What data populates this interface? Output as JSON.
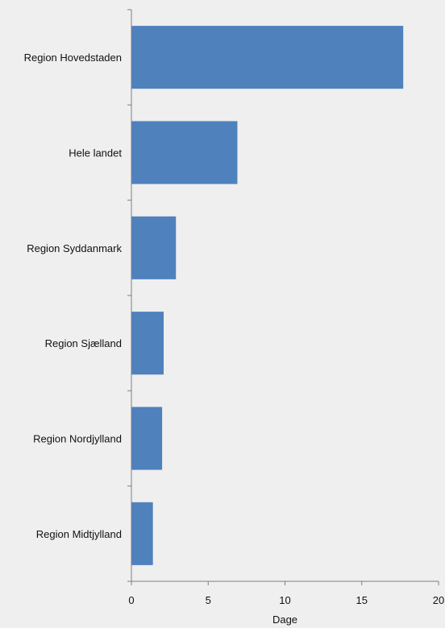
{
  "chart_data": {
    "type": "bar",
    "orientation": "horizontal",
    "categories": [
      "Region Hovedstaden",
      "Hele landet",
      "Region Syddanmark",
      "Region Sjælland",
      "Region Nordjylland",
      "Region Midtjylland"
    ],
    "values": [
      17.7,
      6.9,
      2.9,
      2.1,
      2.0,
      1.4
    ],
    "title": "",
    "xlabel": "Dage",
    "ylabel": "",
    "xlim": [
      0,
      20
    ],
    "xticks": [
      "0",
      "5",
      "10",
      "15",
      "20"
    ],
    "grid": false,
    "legend": "none",
    "bar_color": "#4f81bd"
  }
}
